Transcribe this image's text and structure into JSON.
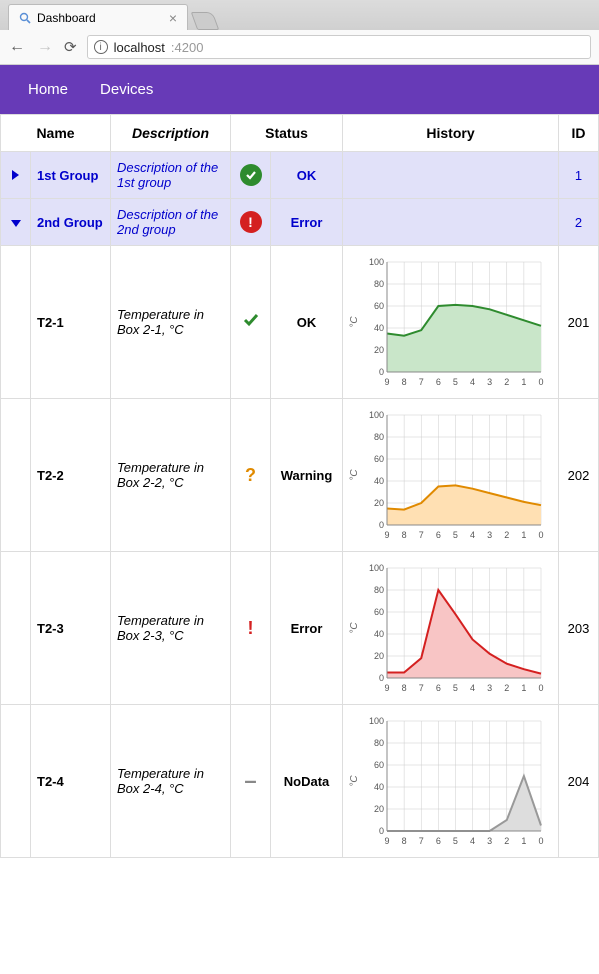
{
  "browser": {
    "tab_title": "Dashboard",
    "url_host": "localhost",
    "url_port": ":4200"
  },
  "navbar": {
    "items": [
      "Home",
      "Devices"
    ]
  },
  "table": {
    "headers": {
      "name": "Name",
      "description": "Description",
      "status": "Status",
      "history": "History",
      "id": "ID"
    }
  },
  "groups": [
    {
      "expanded": false,
      "name": "1st Group",
      "description": "Description of the 1st group",
      "status_icon": "ok-badge",
      "status_text": "OK",
      "id": "1"
    },
    {
      "expanded": true,
      "name": "2nd Group",
      "description": "Description of the 2nd group",
      "status_icon": "error-badge",
      "status_text": "Error",
      "id": "2"
    }
  ],
  "rows": [
    {
      "name": "T2-1",
      "description": "Temperature in Box 2-1, °C",
      "status_icon": "check",
      "status_icon_color": "#2e8b2e",
      "status_text": "OK",
      "id": "201",
      "chart": {
        "type": "area",
        "ylim": [
          0,
          100
        ],
        "ytick_step": 20,
        "x_labels": [
          "9",
          "8",
          "7",
          "6",
          "5",
          "4",
          "3",
          "2",
          "1",
          "0"
        ],
        "values": [
          35,
          33,
          38,
          60,
          61,
          60,
          57,
          52,
          47,
          42
        ],
        "stroke": "#2e8b2e",
        "fill": "#c9e6c9",
        "y_axis_label": "°C",
        "background": "#ffffff",
        "grid_color": "#cccccc"
      }
    },
    {
      "name": "T2-2",
      "description": "Temperature in Box 2-2, °C",
      "status_icon": "question",
      "status_icon_color": "#e08a00",
      "status_text": "Warning",
      "id": "202",
      "chart": {
        "type": "area",
        "ylim": [
          0,
          100
        ],
        "ytick_step": 20,
        "x_labels": [
          "9",
          "8",
          "7",
          "6",
          "5",
          "4",
          "3",
          "2",
          "1",
          "0"
        ],
        "values": [
          15,
          14,
          20,
          35,
          36,
          33,
          29,
          25,
          21,
          18
        ],
        "stroke": "#e08a00",
        "fill": "#ffe0b3",
        "y_axis_label": "°C",
        "background": "#ffffff",
        "grid_color": "#cccccc"
      }
    },
    {
      "name": "T2-3",
      "description": "Temperature in Box 2-3, °C",
      "status_icon": "exclaim",
      "status_icon_color": "#d42020",
      "status_text": "Error",
      "id": "203",
      "chart": {
        "type": "area",
        "ylim": [
          0,
          100
        ],
        "ytick_step": 20,
        "x_labels": [
          "9",
          "8",
          "7",
          "6",
          "5",
          "4",
          "3",
          "2",
          "1",
          "0"
        ],
        "values": [
          5,
          5,
          18,
          80,
          58,
          35,
          22,
          13,
          8,
          4
        ],
        "stroke": "#d42020",
        "fill": "#f8c5c5",
        "y_axis_label": "°C",
        "background": "#ffffff",
        "grid_color": "#cccccc"
      }
    },
    {
      "name": "T2-4",
      "description": "Temperature in Box 2-4, °C",
      "status_icon": "dash",
      "status_icon_color": "#888888",
      "status_text": "NoData",
      "id": "204",
      "chart": {
        "type": "area",
        "ylim": [
          0,
          100
        ],
        "ytick_step": 20,
        "x_labels": [
          "9",
          "8",
          "7",
          "6",
          "5",
          "4",
          "3",
          "2",
          "1",
          "0"
        ],
        "values": [
          0,
          0,
          0,
          0,
          0,
          0,
          0,
          10,
          50,
          5
        ],
        "stroke": "#999999",
        "fill": "#dddddd",
        "y_axis_label": "°C",
        "background": "#ffffff",
        "grid_color": "#cccccc"
      }
    }
  ]
}
